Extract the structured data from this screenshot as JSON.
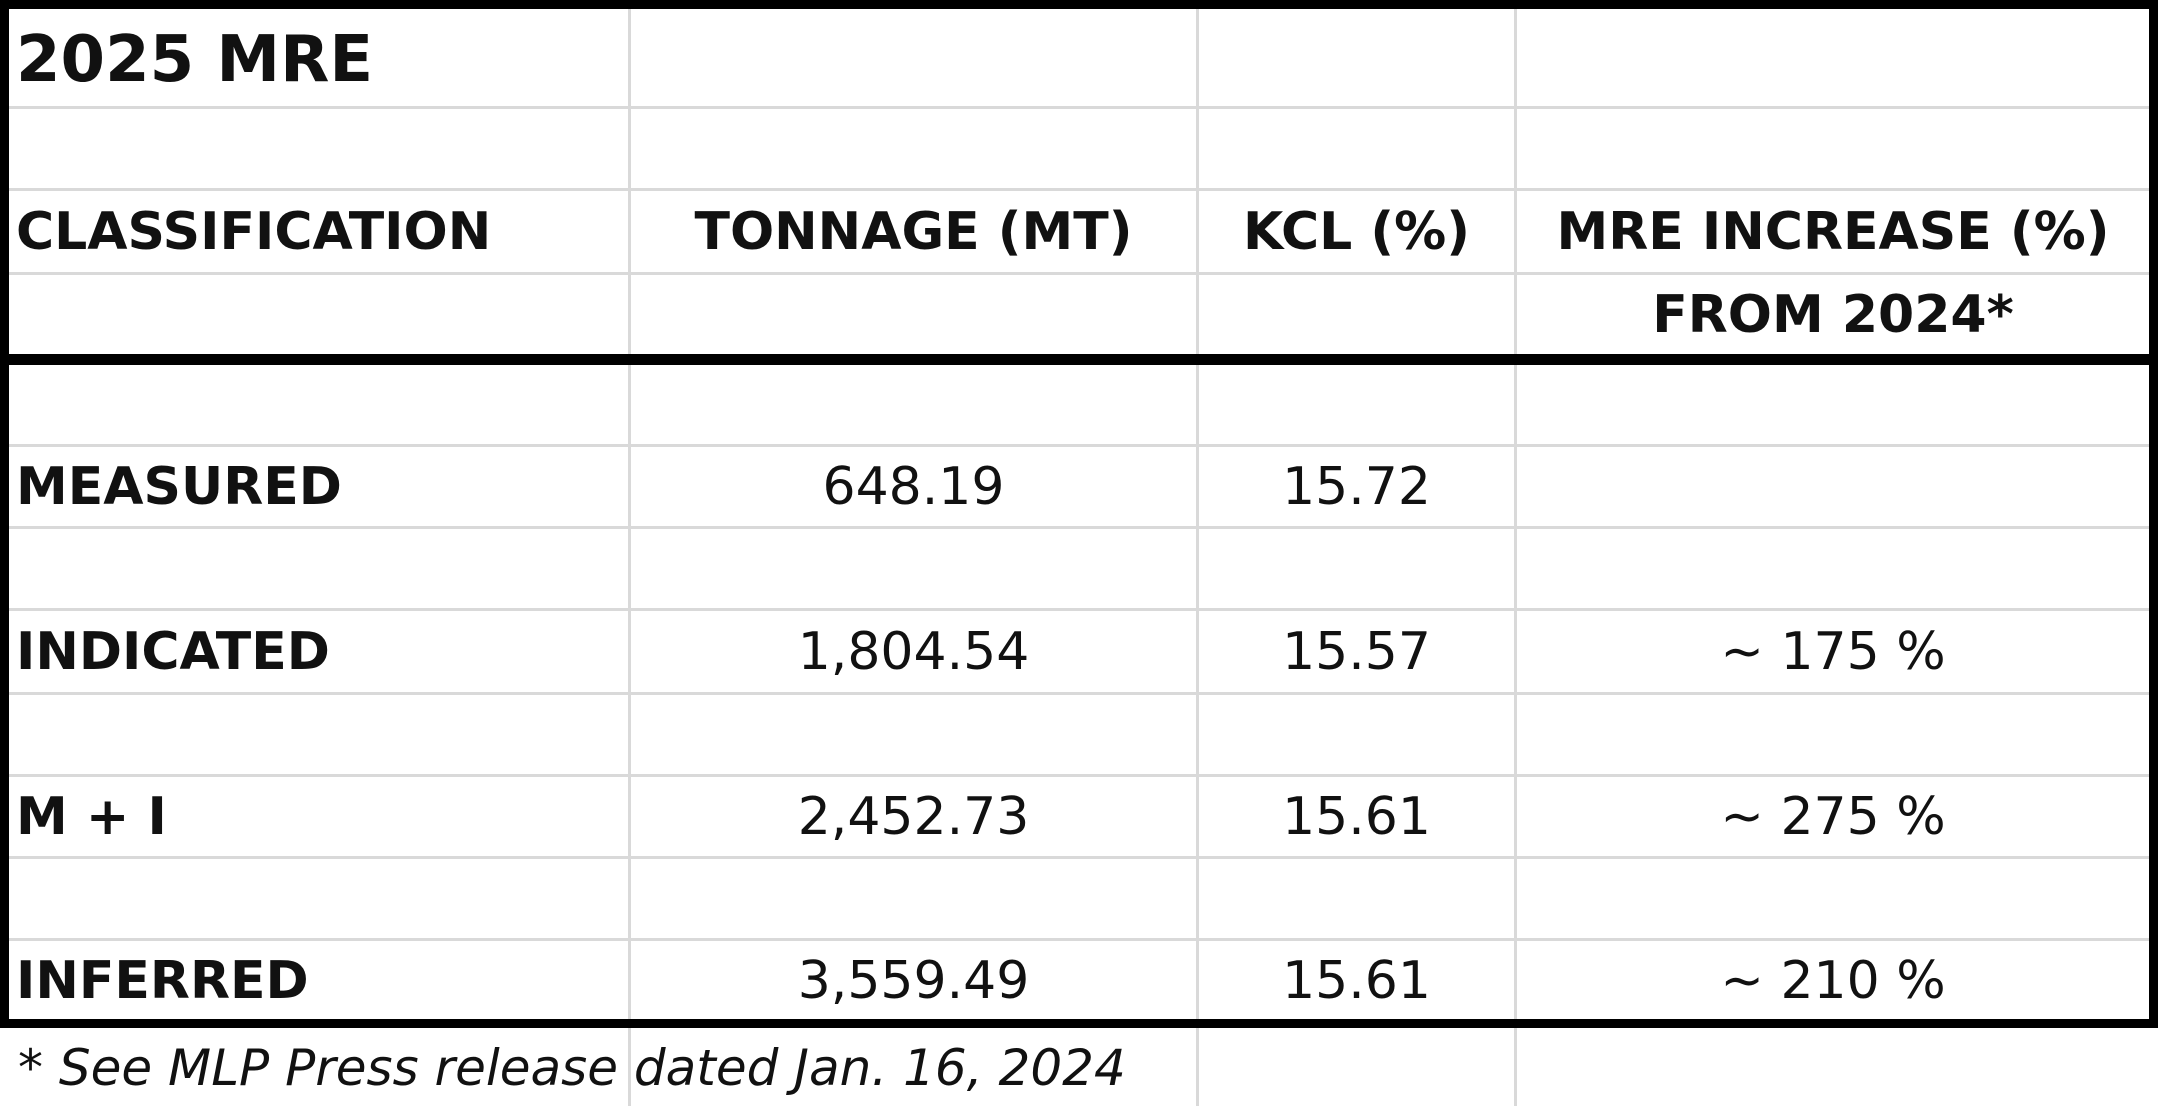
{
  "title": "2025 MRE",
  "headers": {
    "classification": "CLASSIFICATION",
    "tonnage": "TONNAGE (MT)",
    "kcl": "KCL (%)",
    "increase_line1": "MRE INCREASE (%)",
    "increase_line2": "FROM 2024*"
  },
  "rows": [
    {
      "classification": "MEASURED",
      "tonnage": "648.19",
      "kcl": "15.72",
      "increase": ""
    },
    {
      "classification": "INDICATED",
      "tonnage": "1,804.54",
      "kcl": "15.57",
      "increase": "~ 175 %"
    },
    {
      "classification": "M + I",
      "tonnage": "2,452.73",
      "kcl": "15.61",
      "increase": "~ 275 %"
    },
    {
      "classification": "INFERRED",
      "tonnage": "3,559.49",
      "kcl": "15.61",
      "increase": "~ 210 %"
    }
  ],
  "footnote": "* See MLP Press release dated Jan. 16, 2024"
}
